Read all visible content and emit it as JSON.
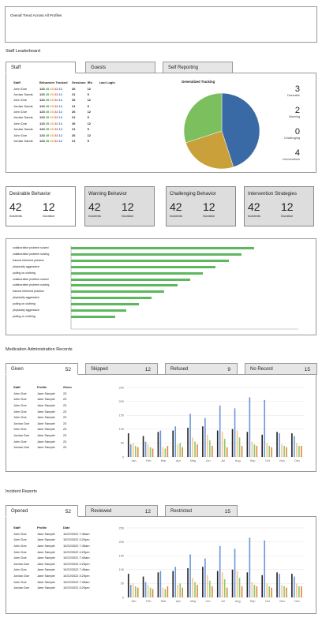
{
  "overall": {
    "title": "Overall Trend Across All Profiles"
  },
  "leaderboard": {
    "section_title": "Staff Leaderboard",
    "tabs": [
      "Staff",
      "Guests",
      "Self Reporting"
    ],
    "columns": [
      "Staff",
      "Behaviors Tracked",
      "Sessions",
      "IRs",
      "Last Login"
    ],
    "chart_title": "Generalized Tracking",
    "rows": [
      {
        "name": "John Doe",
        "total": "123",
        "d": "45",
        "w": "23",
        "c": "22",
        "i": "12",
        "sessions": "26",
        "irs": "12"
      },
      {
        "name": "Jordan Sands",
        "total": "123",
        "d": "45",
        "w": "23",
        "c": "22",
        "i": "12",
        "sessions": "21",
        "irs": "5"
      },
      {
        "name": "John Doe",
        "total": "123",
        "d": "45",
        "w": "23",
        "c": "22",
        "i": "12",
        "sessions": "26",
        "irs": "12"
      },
      {
        "name": "Jordan Sands",
        "total": "123",
        "d": "45",
        "w": "23",
        "c": "22",
        "i": "12",
        "sessions": "21",
        "irs": "5"
      },
      {
        "name": "John Doe",
        "total": "123",
        "d": "45",
        "w": "23",
        "c": "22",
        "i": "12",
        "sessions": "26",
        "irs": "12"
      },
      {
        "name": "Jordan Sands",
        "total": "123",
        "d": "45",
        "w": "23",
        "c": "22",
        "i": "12",
        "sessions": "21",
        "irs": "5"
      },
      {
        "name": "John Doe",
        "total": "123",
        "d": "45",
        "w": "23",
        "c": "22",
        "i": "12",
        "sessions": "26",
        "irs": "12"
      },
      {
        "name": "Jordan Sands",
        "total": "123",
        "d": "45",
        "w": "23",
        "c": "22",
        "i": "12",
        "sessions": "21",
        "irs": "5"
      },
      {
        "name": "John Doe",
        "total": "123",
        "d": "45",
        "w": "23",
        "c": "22",
        "i": "12",
        "sessions": "26",
        "irs": "12"
      },
      {
        "name": "Jordan Sands",
        "total": "123",
        "d": "45",
        "w": "23",
        "c": "22",
        "i": "12",
        "sessions": "21",
        "irs": "5"
      }
    ],
    "stats": [
      {
        "value": "3",
        "label": "Desirable"
      },
      {
        "value": "2",
        "label": "Warning"
      },
      {
        "value": "0",
        "label": "Challenging"
      },
      {
        "value": "4",
        "label": "Interventions"
      }
    ]
  },
  "cards": [
    {
      "title": "Desirable Behavior",
      "v1": "42",
      "l1": "Incidents",
      "v2": "12",
      "l2": "Duration"
    },
    {
      "title": "Warning Behavior",
      "v1": "42",
      "l1": "Incidents",
      "v2": "12",
      "l2": "Duration"
    },
    {
      "title": "Challenging Behavior",
      "v1": "42",
      "l1": "Incidents",
      "v2": "12",
      "l2": "Duration"
    },
    {
      "title": "Intervention Strategies",
      "v1": "42",
      "l1": "Incidents",
      "v2": "12",
      "l2": "Duration"
    }
  ],
  "medication": {
    "section_title": "Medication Administration Records",
    "tabs": [
      {
        "label": "Given",
        "count": "52"
      },
      {
        "label": "Skipped",
        "count": "12"
      },
      {
        "label": "Refused",
        "count": "9"
      },
      {
        "label": "No Record",
        "count": "15"
      }
    ],
    "columns": [
      "Staff",
      "Profile",
      "Given"
    ],
    "rows": [
      {
        "staff": "John Doe",
        "profile": "Jane Sample",
        "v": "23"
      },
      {
        "staff": "John Doe",
        "profile": "Jane Sample",
        "v": "23"
      },
      {
        "staff": "John Doe",
        "profile": "Jane Sample",
        "v": "23"
      },
      {
        "staff": "John Doe",
        "profile": "Jane Sample",
        "v": "23"
      },
      {
        "staff": "John Doe",
        "profile": "Jane Sample",
        "v": "23"
      },
      {
        "staff": "Jordan Doe",
        "profile": "Jane Sample",
        "v": "23"
      },
      {
        "staff": "John Doe",
        "profile": "Jane Sample",
        "v": "23"
      },
      {
        "staff": "Jordan Doe",
        "profile": "Jane Sample",
        "v": "23"
      },
      {
        "staff": "John Doe",
        "profile": "Jane Sample",
        "v": "23"
      },
      {
        "staff": "Jordan Doe",
        "profile": "Jane Sample",
        "v": "23"
      }
    ]
  },
  "incidents": {
    "section_title": "Incident Reports",
    "tabs": [
      {
        "label": "Opened",
        "count": "52"
      },
      {
        "label": "Reviewed",
        "count": "12"
      },
      {
        "label": "Restricted",
        "count": "15"
      }
    ],
    "columns": [
      "Staff",
      "Profile",
      "Date"
    ],
    "rows": [
      {
        "staff": "John Doe",
        "profile": "Jane Sample",
        "v": "10/22/2022  7:45am"
      },
      {
        "staff": "John Doe",
        "profile": "Jane Sample",
        "v": "10/22/2022  4:20pm"
      },
      {
        "staff": "John Doe",
        "profile": "Jane Sample",
        "v": "10/22/2022  7:45am"
      },
      {
        "staff": "John Doe",
        "profile": "Jane Sample",
        "v": "10/22/2022  4:20pm"
      },
      {
        "staff": "John Doe",
        "profile": "Jane Sample",
        "v": "10/22/2022  7:45am"
      },
      {
        "staff": "Jordan Doe",
        "profile": "Jane Sample",
        "v": "10/22/2022  4:20pm"
      },
      {
        "staff": "John Doe",
        "profile": "Jane Sample",
        "v": "10/22/2022  7:45am"
      },
      {
        "staff": "Jordan Doe",
        "profile": "Jane Sample",
        "v": "10/22/2022  4:20pm"
      },
      {
        "staff": "John Doe",
        "profile": "Jane Sample",
        "v": "10/22/2022  7:45am"
      },
      {
        "staff": "Jordan Doe",
        "profile": "Jane Sample",
        "v": "10/22/2022  4:20pm"
      }
    ]
  },
  "chart_data": [
    {
      "type": "pie",
      "title": "Generalized Tracking",
      "slices": [
        {
          "value": 45,
          "color": "#3a6aa5"
        },
        {
          "value": 25,
          "color": "#c9a03a"
        },
        {
          "value": 30,
          "color": "#7bbf5e"
        }
      ]
    },
    {
      "type": "bar",
      "orientation": "horizontal",
      "categories": [
        "collaborative problem solved",
        "collaborative problem solving",
        "trauma informed practice",
        "physically aggressive",
        "pulling on clothing",
        "collaborative problem solved",
        "collaborative problem solving",
        "trauma informed practice",
        "physically aggressive",
        "pulling on clothing",
        "physically aggressive",
        "pulling on clothing"
      ],
      "values": [
        100,
        93,
        86,
        79,
        72,
        65,
        58,
        51,
        44,
        37,
        30,
        24
      ],
      "colors": {
        "bar": "#5cb85c"
      }
    },
    {
      "type": "bar",
      "categories": [
        "Jan",
        "Feb",
        "Mar",
        "Apr",
        "May",
        "Jun",
        "Jul",
        "Aug",
        "Sep",
        "Oct",
        "Nov",
        "Dec"
      ],
      "ylim": [
        0,
        250
      ],
      "yticks": [
        "250",
        "200",
        "150",
        "100",
        "50",
        "0"
      ],
      "series": [
        {
          "color": "#222222",
          "values": [
            85,
            75,
            90,
            95,
            105,
            110,
            95,
            100,
            90,
            80,
            90,
            85
          ]
        },
        {
          "color": "#6e95d8",
          "values": [
            45,
            55,
            95,
            110,
            155,
            140,
            185,
            175,
            215,
            205,
            85,
            75
          ]
        },
        {
          "color": "#f5c98a",
          "values": [
            50,
            45,
            35,
            45,
            70,
            80,
            90,
            95,
            55,
            50,
            45,
            50
          ]
        },
        {
          "color": "#8fc66a",
          "values": [
            40,
            35,
            30,
            50,
            55,
            60,
            65,
            70,
            45,
            40,
            40,
            40
          ]
        },
        {
          "color": "#e0873a",
          "values": [
            35,
            30,
            40,
            35,
            45,
            40,
            35,
            40,
            40,
            35,
            35,
            40
          ]
        }
      ]
    },
    {
      "type": "bar",
      "categories": [
        "Jan",
        "Feb",
        "Mar",
        "Apr",
        "May",
        "Jun",
        "Jul",
        "Aug",
        "Sep",
        "Oct",
        "Nov",
        "Dec"
      ],
      "ylim": [
        0,
        250
      ],
      "yticks": [
        "250",
        "200",
        "150",
        "100",
        "50",
        "0"
      ],
      "series": [
        {
          "color": "#222222",
          "values": [
            85,
            75,
            90,
            95,
            105,
            110,
            95,
            100,
            90,
            80,
            90,
            85
          ]
        },
        {
          "color": "#6e95d8",
          "values": [
            45,
            55,
            95,
            110,
            155,
            140,
            185,
            175,
            215,
            205,
            85,
            75
          ]
        },
        {
          "color": "#f5c98a",
          "values": [
            50,
            45,
            35,
            45,
            70,
            80,
            90,
            95,
            55,
            50,
            45,
            50
          ]
        },
        {
          "color": "#8fc66a",
          "values": [
            40,
            35,
            30,
            50,
            55,
            60,
            65,
            70,
            45,
            40,
            40,
            40
          ]
        },
        {
          "color": "#e0873a",
          "values": [
            35,
            30,
            40,
            35,
            45,
            40,
            35,
            40,
            40,
            35,
            35,
            40
          ]
        }
      ]
    }
  ]
}
